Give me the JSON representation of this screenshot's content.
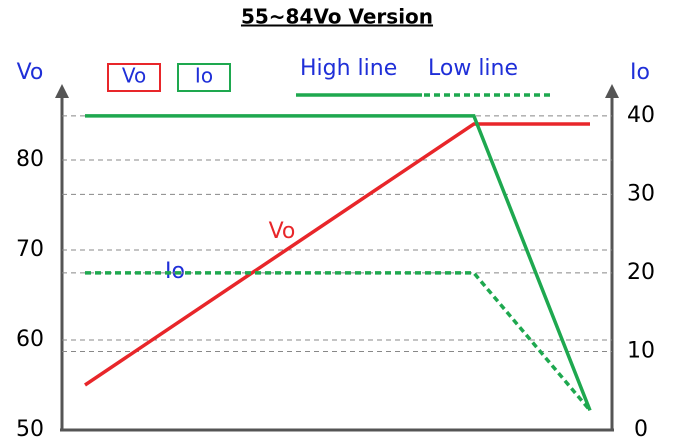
{
  "chart_data": {
    "type": "line",
    "title": "55~84Vo Version",
    "y_label": "Vo",
    "y2_label": "Io",
    "x": [
      0,
      77,
      100
    ],
    "xlim": [
      0,
      100
    ],
    "ylim": [
      50,
      87
    ],
    "yticks": [
      50,
      60,
      70,
      80
    ],
    "y2lim": [
      0,
      42.4
    ],
    "y2ticks": [
      0,
      10,
      20,
      30,
      40
    ],
    "grid": true,
    "series": [
      {
        "color": "#e8262a",
        "style": "solid",
        "values": [
          55,
          84,
          84
        ]
      },
      {
        "color": "#1ea84f",
        "style": "solid",
        "axis": "y2",
        "values": [
          40,
          40,
          2.5
        ]
      },
      {
        "color": "#1ea84f",
        "style": "dashed",
        "axis": "y2",
        "values": [
          20,
          20,
          2.5
        ]
      }
    ],
    "legend": [
      {
        "text": "Vo",
        "color": "#e8262a",
        "style": "box"
      },
      {
        "text": "Io",
        "color": "#1ea84f",
        "style": "box"
      },
      {
        "text": "High line",
        "color": "#1ea84f",
        "style": "solid"
      },
      {
        "text": "Low line",
        "color": "#1ea84f",
        "style": "dashed"
      }
    ],
    "annotations": [
      "Vo",
      "Io"
    ]
  }
}
